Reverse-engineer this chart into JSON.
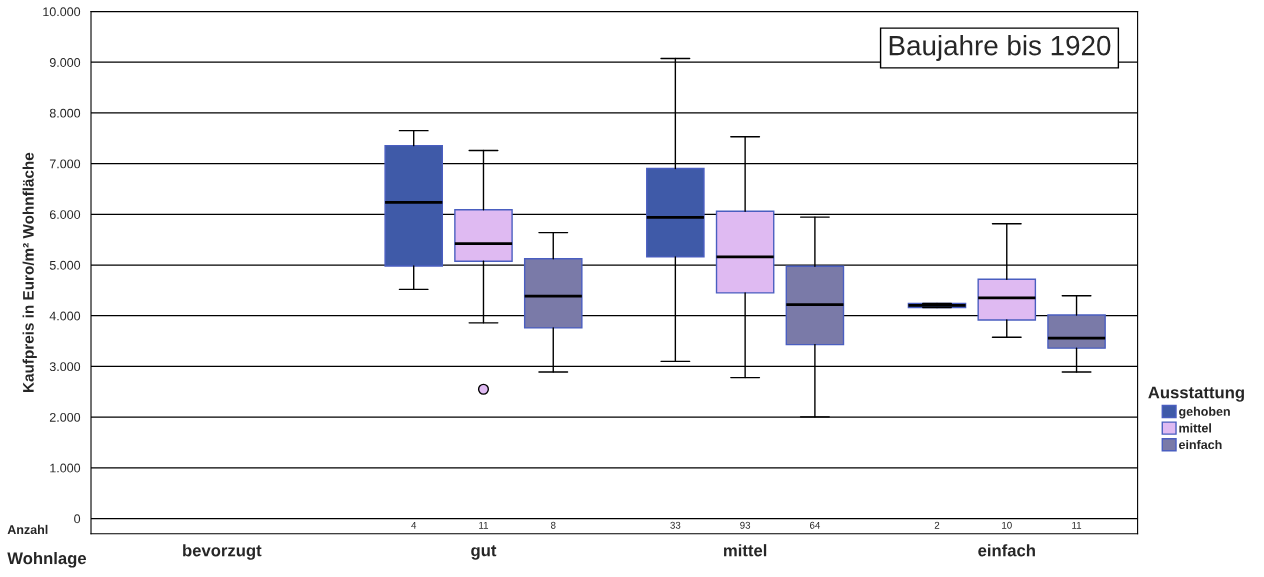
{
  "chart_data": {
    "type": "box",
    "title": "Baujahre bis 1920",
    "xlabel": "Wohnlage",
    "ylabel": "Kaufpreis in Euro/m² Wohnfläche",
    "legend_title": "Ausstattung",
    "categories": [
      "bevorzugt",
      "gut",
      "mittel",
      "einfach"
    ],
    "series": [
      {
        "name": "gehoben",
        "color": "#3f5aa8",
        "value_labels": [
          null,
          "4",
          "33",
          "2"
        ],
        "boxes": [
          null,
          {
            "low": 4520,
            "q1": 4980,
            "median": 6235,
            "q3": 7355,
            "high": 7650
          },
          {
            "low": 3100,
            "q1": 5160,
            "median": 5940,
            "q3": 6905,
            "high": 9075
          },
          {
            "low": 4160,
            "q1": 4160,
            "median": 4205,
            "q3": 4240,
            "high": 4240
          }
        ]
      },
      {
        "name": "mittel",
        "color": "#dfbaf2",
        "value_labels": [
          null,
          "11",
          "93",
          "10"
        ],
        "boxes": [
          null,
          {
            "low": 3860,
            "q1": 5075,
            "median": 5420,
            "q3": 6090,
            "high": 7260,
            "outliers": [
              2550
            ]
          },
          {
            "low": 2780,
            "q1": 4450,
            "median": 5160,
            "q3": 6060,
            "high": 7530
          },
          {
            "low": 3575,
            "q1": 3915,
            "median": 4350,
            "q3": 4720,
            "high": 5815
          }
        ]
      },
      {
        "name": "einfach",
        "color": "#7a7aa8",
        "value_labels": [
          null,
          "8",
          "64",
          "11"
        ],
        "boxes": [
          null,
          {
            "low": 2890,
            "q1": 3760,
            "median": 4385,
            "q3": 5125,
            "high": 5640
          },
          {
            "low": 2005,
            "q1": 3430,
            "median": 4220,
            "q3": 4975,
            "high": 5945
          },
          {
            "low": 2890,
            "q1": 3360,
            "median": 3560,
            "q3": 4015,
            "high": 4395
          }
        ]
      }
    ],
    "annotations": [
      "Anzahl"
    ],
    "ylim": [
      -300,
      10000
    ],
    "yticks": [
      {
        "value": 0,
        "label": "0"
      },
      {
        "value": 1000,
        "label": "1.000"
      },
      {
        "value": 2000,
        "label": "2.000"
      },
      {
        "value": 3000,
        "label": "3.000"
      },
      {
        "value": 4000,
        "label": "4.000"
      },
      {
        "value": 5000,
        "label": "5.000"
      },
      {
        "value": 6000,
        "label": "6.000"
      },
      {
        "value": 7000,
        "label": "7.000"
      },
      {
        "value": 8000,
        "label": "8.000"
      },
      {
        "value": 9000,
        "label": "9.000"
      },
      {
        "value": 10000,
        "label": "10.000"
      }
    ],
    "grid": "y",
    "legend": "right"
  }
}
